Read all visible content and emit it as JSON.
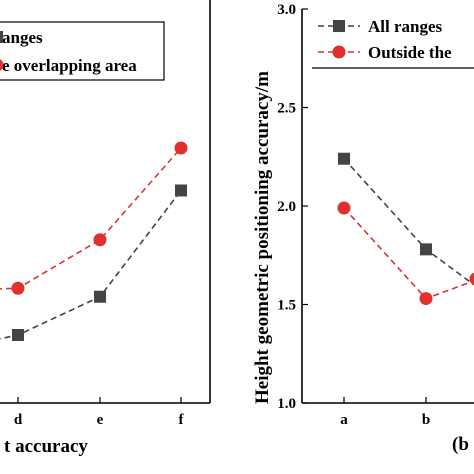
{
  "chart_data": [
    {
      "type": "line",
      "categories": [
        "d",
        "e",
        "f"
      ],
      "xlabel": "t accuracy",
      "series": [
        {
          "name": "anges",
          "color": "#444444",
          "marker": "square",
          "dash": "dashed",
          "values": [
            1.3,
            1.75,
            3.0
          ]
        },
        {
          "name": "e overlapping area",
          "color": "#e03030",
          "marker": "circle",
          "dash": "dashed",
          "values": [
            1.85,
            2.42,
            3.5
          ]
        }
      ],
      "extra_points": [
        {
          "series": 0,
          "x_offset_from_first": -1,
          "value": 1.1
        },
        {
          "series": 1,
          "x_offset_from_first": -1,
          "value": 1.82
        }
      ]
    },
    {
      "type": "line",
      "categories": [
        "a",
        "b"
      ],
      "ylabel": "Height geometric positioning accuracy/m",
      "ylim": [
        1.0,
        3.0
      ],
      "yticks": [
        "1.0",
        "1.5",
        "2.0",
        "2.5",
        "3.0"
      ],
      "panel_label": "(b",
      "series": [
        {
          "name": "All ranges",
          "color": "#444444",
          "marker": "square",
          "dash": "dashed",
          "values": [
            2.24,
            1.78
          ]
        },
        {
          "name": "Outside the",
          "color": "#e03030",
          "marker": "circle",
          "dash": "dashed",
          "values": [
            1.99,
            1.53
          ]
        }
      ],
      "tail_values": [
        1.6,
        1.62
      ]
    }
  ]
}
